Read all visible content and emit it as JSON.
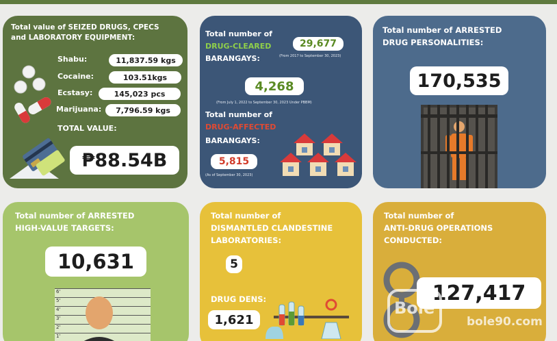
{
  "seized": {
    "title_line1": "Total value of SEIZED DRUGS, CPECS",
    "title_line2": "and LABORATORY EQUIPMENT:",
    "items": [
      {
        "label": "Shabu:",
        "value": "11,837.59 kgs"
      },
      {
        "label": "Cocaine:",
        "value": "103.51kgs"
      },
      {
        "label": "Ecstasy:",
        "value": "145,023 pcs"
      },
      {
        "label": "Marijuana:",
        "value": "7,796.59 kgs"
      }
    ],
    "total_label": "TOTAL VALUE:",
    "total_value": "₱88.54B"
  },
  "barangays": {
    "cleared_prefix": "Total number of",
    "cleared_highlight": "DRUG-CLEARED",
    "cleared_suffix": "BARANGAYS:",
    "cleared_value": "29,677",
    "cleared_note": "(From 2017 to September 30, 2023)",
    "cleared_period_value": "4,268",
    "cleared_period_note": "(From July 1, 2022 to September 30, 2023 Under PBBM)",
    "affected_prefix": "Total number of",
    "affected_highlight": "DRUG-AFFECTED",
    "affected_suffix": "BARANGAYS:",
    "affected_value": "5,815",
    "affected_note": "(As of September 30, 2023)"
  },
  "arrested": {
    "title_line1": "Total number of ARRESTED",
    "title_line2": "DRUG PERSONALITIES:",
    "value": "170,535"
  },
  "hvt": {
    "title_line1": "Total number of ARRESTED",
    "title_line2": "HIGH-VALUE TARGETS:",
    "value": "10,631",
    "height_marks": [
      "6'",
      "5'",
      "4'",
      "3'",
      "2'",
      "1'"
    ]
  },
  "labs": {
    "title_line1": "Total number of",
    "title_line2": "DISMANTLED CLANDESTINE",
    "title_line3": "LABORATORIES:",
    "value": "5",
    "dens_label": "DRUG DENS:",
    "dens_value": "1,621"
  },
  "operations": {
    "title_line1": "Total number of",
    "title_line2": "ANTI-DRUG OPERATIONS",
    "title_line3": "CONDUCTED:",
    "value": "127,417"
  },
  "watermark": {
    "brand": "Bole",
    "url": "bole90.com"
  },
  "colors": {
    "card_seized": "#5d7440",
    "card_barangays": "#3c5677",
    "card_arrested": "#4d6b8c",
    "card_hvt": "#a6c56b",
    "card_labs": "#e7c13a",
    "card_operations": "#d9ae3b",
    "highlight_green": "#8fcf4a",
    "highlight_red": "#e04a33"
  }
}
